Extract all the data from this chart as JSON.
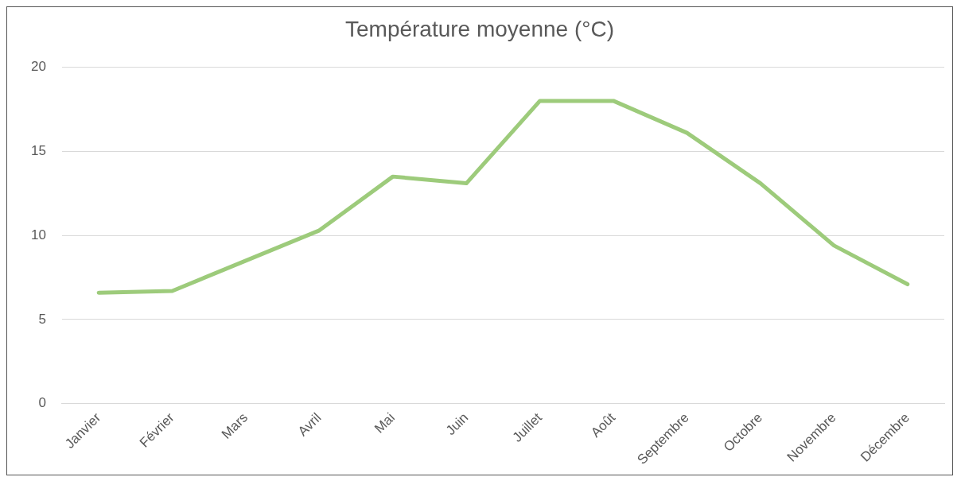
{
  "chart_data": {
    "type": "line",
    "title": "Température moyenne (°C)",
    "categories": [
      "Janvier",
      "Février",
      "Mars",
      "Avril",
      "Mai",
      "Juin",
      "Juillet",
      "Août",
      "Septembre",
      "Octobre",
      "Novembre",
      "Décembre"
    ],
    "series": [
      {
        "color": "#9dcb7b",
        "values": [
          6.6,
          6.7,
          8.5,
          10.3,
          13.5,
          13.1,
          18.0,
          18.0,
          16.1,
          13.1,
          9.4,
          7.1
        ]
      }
    ],
    "ylim": [
      0,
      20
    ],
    "yticks": [
      0,
      5,
      10,
      15,
      20
    ],
    "grid": "y",
    "legend": false,
    "marker": "none",
    "line_style": "solid"
  }
}
